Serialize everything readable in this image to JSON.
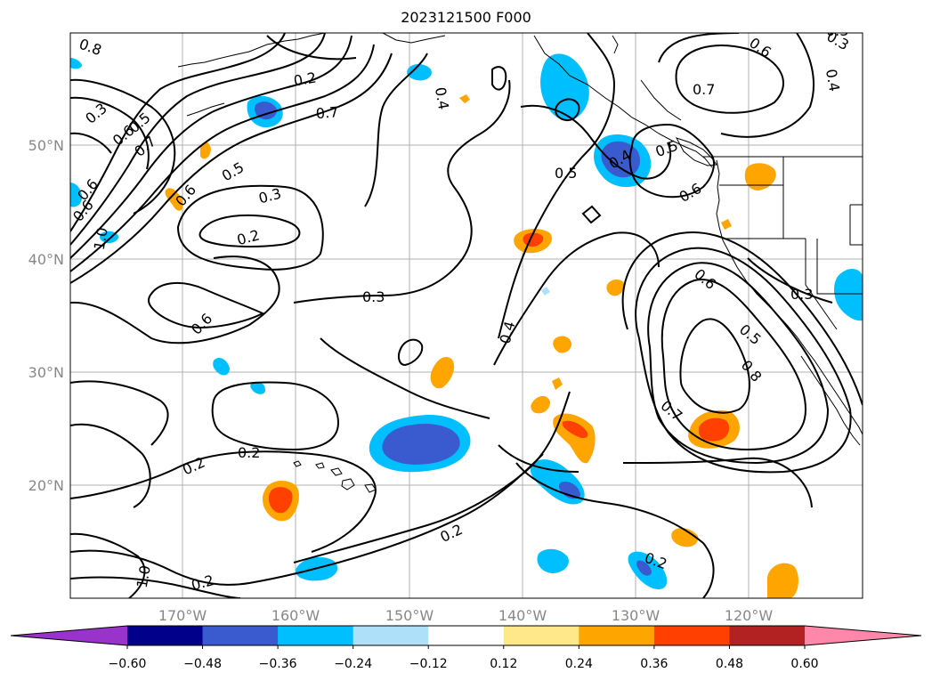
{
  "title": "2023121500 F000",
  "lat_labels": [
    "50°N",
    "40°N",
    "30°N",
    "20°N"
  ],
  "lon_labels": [
    "170°W",
    "160°W",
    "150°W",
    "140°W",
    "130°W",
    "120°W"
  ],
  "contour_labels": [
    "0.8",
    "0.3",
    "0.6",
    "0.5",
    "0.7",
    "0.6",
    "1.0",
    "0.6",
    "0.5",
    "0.2",
    "0.3",
    "0.2",
    "0.7",
    "0.6",
    "0.3",
    "0.4",
    "0.4",
    "0.5",
    "0.4",
    "0.5",
    "0.6",
    "0.7",
    "0.6",
    "0.4",
    "0.3",
    "0.3",
    "0.6",
    "0.5",
    "0.8",
    "0.7",
    "0.2",
    "0.2",
    "0.2",
    "0.2",
    "1.0",
    "0.2",
    "0.3",
    "0.6"
  ],
  "colorbar": {
    "ticks": [
      "−0.60",
      "−0.48",
      "−0.36",
      "−0.24",
      "−0.12",
      "0.12",
      "0.24",
      "0.36",
      "0.48",
      "0.60"
    ],
    "colors": [
      "#9933cc",
      "#00008b",
      "#3a5bcf",
      "#00bfff",
      "#aee0fa",
      "#ffffff",
      "#ffe88a",
      "#ffa500",
      "#ff4000",
      "#b22222",
      "#ff88aa"
    ]
  }
}
